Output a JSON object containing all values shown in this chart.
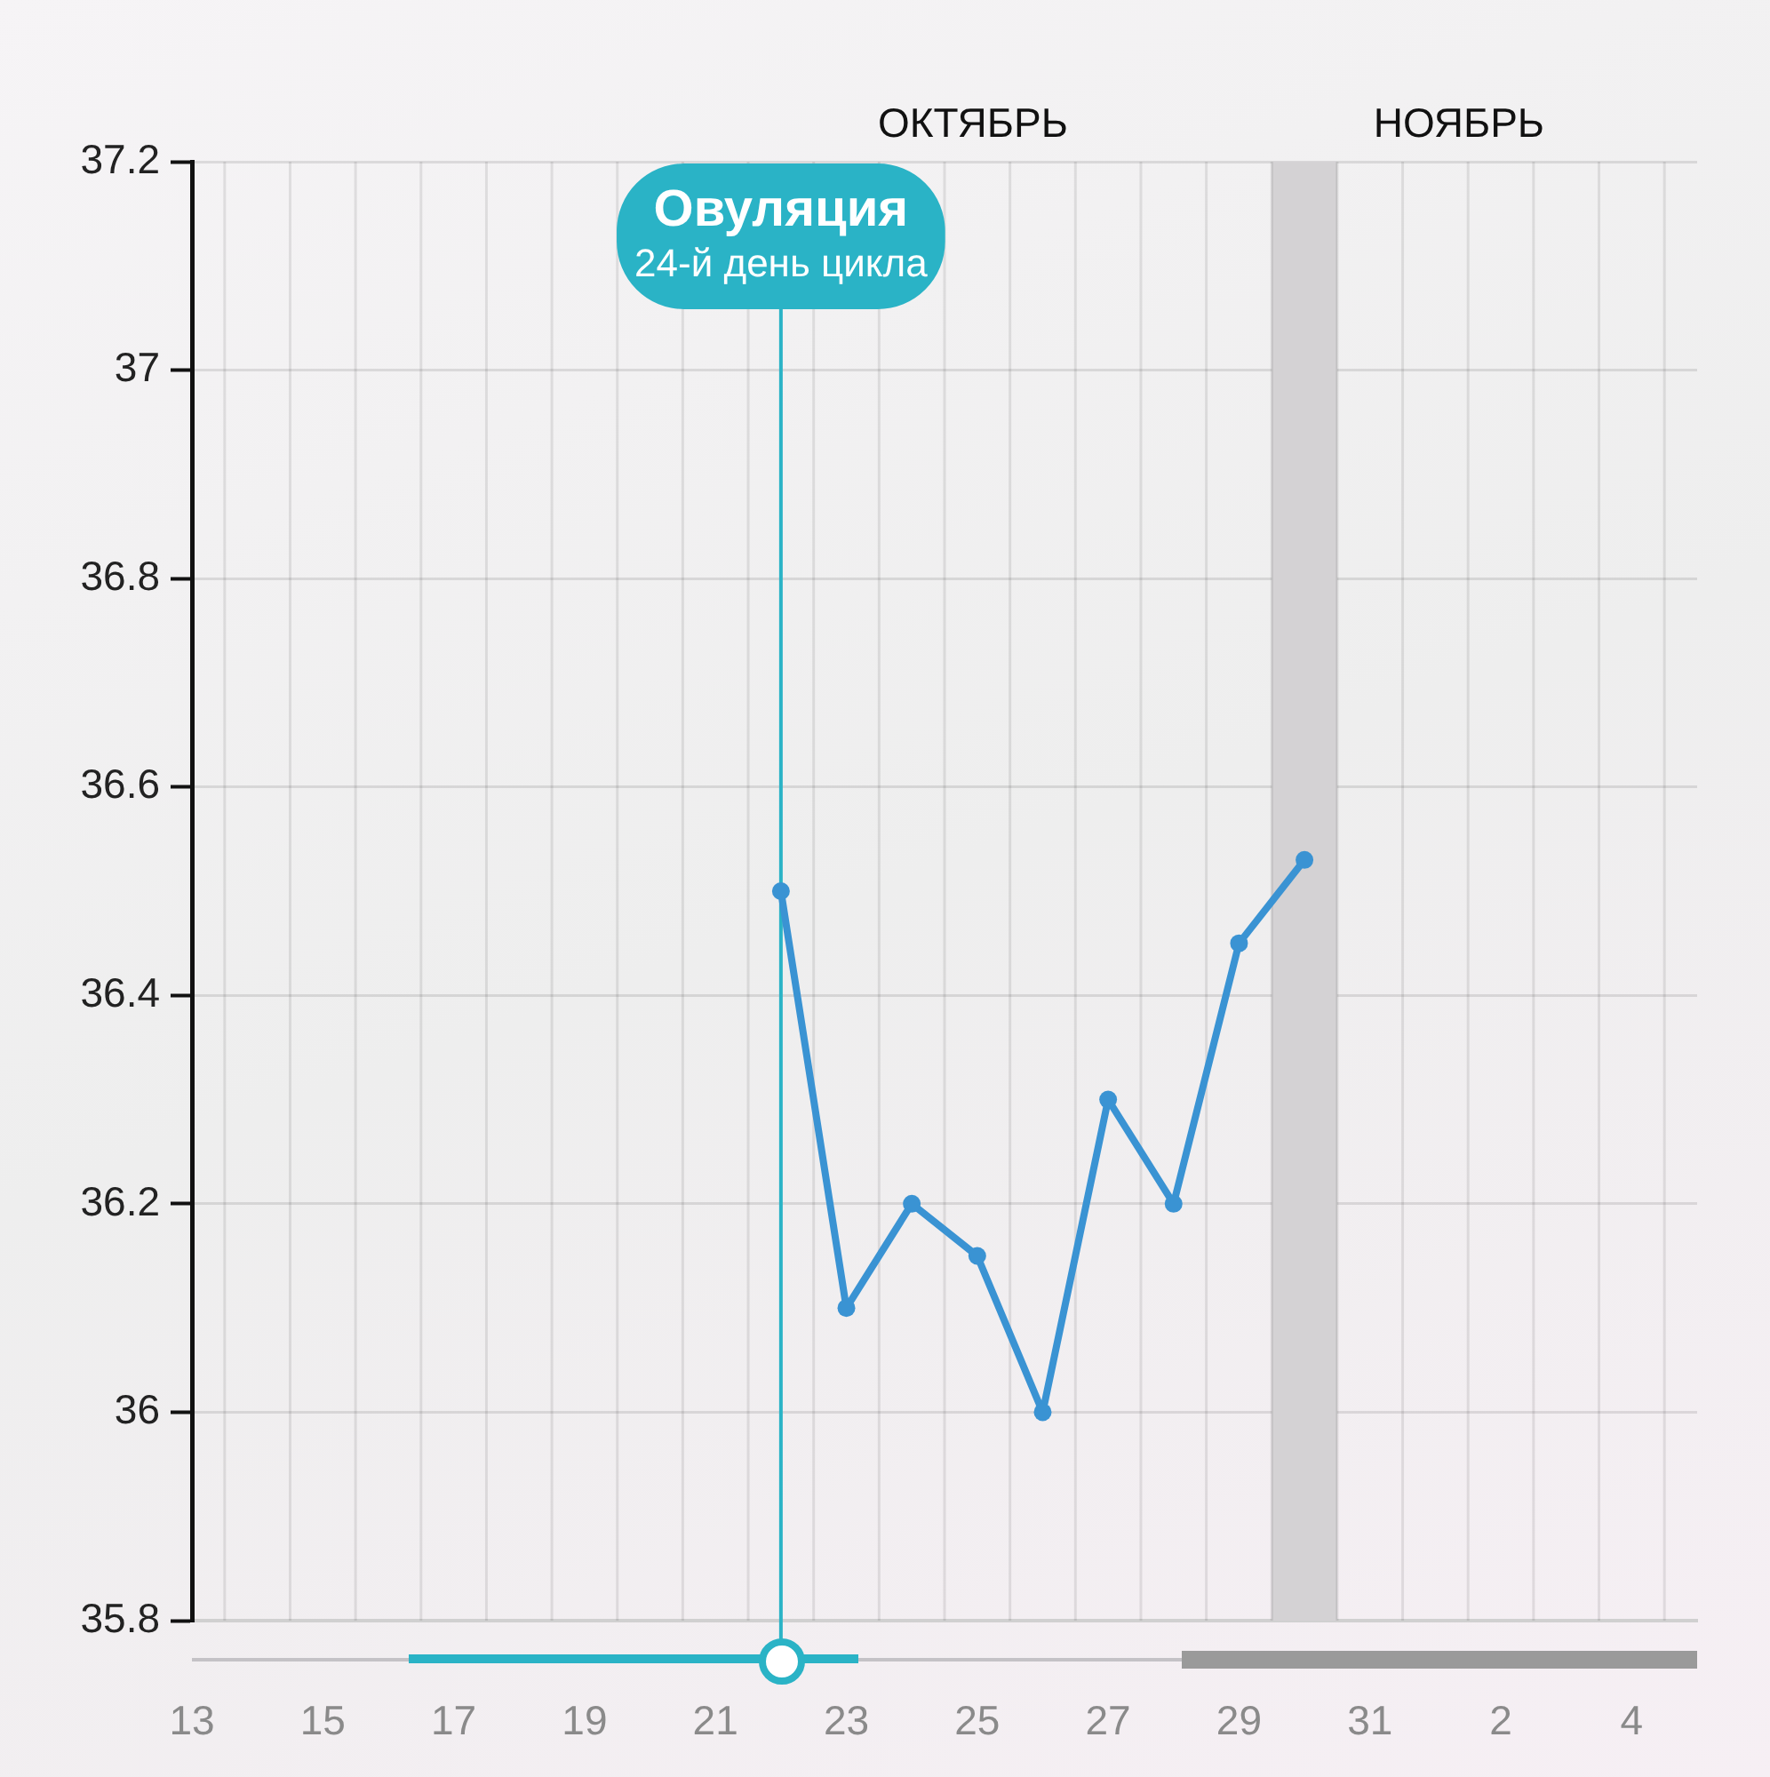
{
  "chart_data": {
    "type": "line",
    "x": [
      "--10-22",
      "--10-23",
      "--10-24",
      "--10-25",
      "--10-26",
      "--10-27",
      "--10-28",
      "--10-29",
      "--10-30"
    ],
    "series": [
      {
        "color": "#3a93d3",
        "values": [
          36.5,
          36.1,
          36.2,
          36.15,
          36.0,
          36.3,
          36.2,
          36.45,
          36.53
        ]
      }
    ],
    "xlim": [
      "--10-13",
      "--11-05"
    ],
    "xticks": [
      {
        "value": "--10-13",
        "label": "13"
      },
      {
        "value": "--10-15",
        "label": "15"
      },
      {
        "value": "--10-17",
        "label": "17"
      },
      {
        "value": "--10-19",
        "label": "19"
      },
      {
        "value": "--10-21",
        "label": "21"
      },
      {
        "value": "--10-23",
        "label": "23"
      },
      {
        "value": "--10-25",
        "label": "25"
      },
      {
        "value": "--10-27",
        "label": "27"
      },
      {
        "value": "--10-29",
        "label": "29"
      },
      {
        "value": "--10-31",
        "label": "31"
      },
      {
        "value": "--11-02",
        "label": "2"
      },
      {
        "value": "--11-04",
        "label": "4"
      }
    ],
    "ylim": [
      35.8,
      37.2
    ],
    "yticks": [
      35.8,
      36,
      36.2,
      36.4,
      36.6,
      36.8,
      37,
      37.2
    ],
    "ref_lines": [
      {
        "axis": "x",
        "value": "--10-22",
        "label": "Овуляция",
        "color": "#2ab3c6"
      }
    ],
    "bands": [
      {
        "axis": "x",
        "from": "--10-29T12:00",
        "to": "--10-30T12:00",
        "color": "#d4d2d4"
      }
    ],
    "annotations": [
      {
        "text": "24-й день цикла",
        "x": "--10-22",
        "y": 37.1
      },
      "ОКТЯБРЬ",
      "НОЯБРЬ"
    ],
    "grid": true,
    "marker": "circle",
    "line_style": "solid",
    "legend": false
  }
}
